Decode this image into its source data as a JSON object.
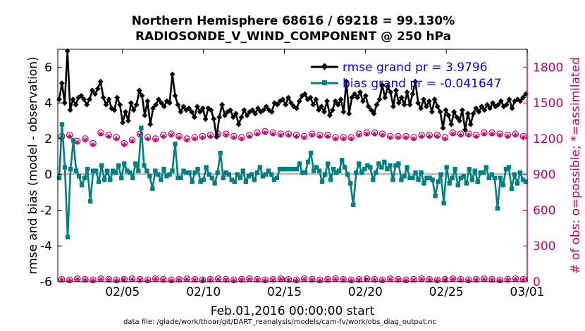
{
  "chart_data": {
    "type": "line",
    "title": "Northern Hemisphere 68616 / 69218 = 99.130%",
    "subtitle": "RADIOSONDE_V_WIND_COMPONENT @ 250 hPa",
    "xlabel": "Feb.01,2016 00:00:00 start",
    "ylabel": "rmse and bias (model - observation)",
    "y2label": "# of obs: o=possible; *=assimilated",
    "footnote": "data file: /glade/work/thoar/git/DART_reanalysis/models/cam-fv/work/obs_diag_output.nc",
    "x_range_days": [
      1,
      30
    ],
    "ylim": [
      -6,
      7
    ],
    "y2lim": [
      0,
      1950
    ],
    "x_ticks": [
      {
        "day": 5,
        "label": "02/05"
      },
      {
        "day": 10,
        "label": "02/10"
      },
      {
        "day": 15,
        "label": "02/15"
      },
      {
        "day": 20,
        "label": "02/20"
      },
      {
        "day": 25,
        "label": "02/25"
      },
      {
        "day": 30,
        "label": "03/01"
      }
    ],
    "y_ticks": [
      -6,
      -4,
      -2,
      0,
      2,
      4,
      6
    ],
    "y2_ticks": [
      0,
      300,
      600,
      900,
      1200,
      1500,
      1800
    ],
    "colors": {
      "rmse": "#000000",
      "bias": "#008080",
      "obs": "#cc0066",
      "zero_line": "#bbbbbb",
      "right_axis": "#cc0066",
      "legend_text": "#0000ff"
    },
    "legend": [
      {
        "label": "rmse grand pr = 3.9796",
        "series": "rmse"
      },
      {
        "label": "bias grand pr = -0.041647",
        "series": "bias"
      }
    ],
    "rmse_values": [
      4.2,
      5.1,
      4.0,
      6.9,
      3.6,
      4.2,
      3.9,
      4.3,
      4.4,
      4.2,
      3.9,
      4.2,
      4.7,
      4.5,
      4.8,
      5.2,
      4.3,
      3.9,
      4.2,
      3.7,
      3.6,
      4.3,
      3.9,
      2.9,
      3.5,
      3.0,
      4.0,
      3.6,
      3.9,
      4.7,
      4.4,
      3.3,
      4.1,
      2.8,
      3.7,
      3.9,
      4.2,
      4.0,
      3.8,
      4.1,
      4.0,
      5.6,
      4.4,
      3.9,
      3.5,
      3.8,
      3.6,
      3.7,
      3.5,
      3.2,
      3.8,
      3.5,
      3.7,
      3.1,
      3.7,
      3.6,
      3.1,
      2.1,
      3.2,
      3.9,
      3.3,
      3.5,
      3.6,
      3.2,
      3.4,
      2.8,
      3.2,
      3.6,
      3.3,
      3.5,
      3.6,
      3.4,
      3.7,
      3.5,
      3.6,
      3.8,
      3.6,
      3.5,
      4.0,
      3.9,
      4.1,
      4.2,
      3.9,
      4.3,
      4.0,
      3.8,
      3.7,
      4.1,
      4.4,
      4.5,
      4.2,
      4.3,
      3.9,
      4.2,
      3.6,
      3.8,
      3.5,
      4.1,
      3.3,
      3.6,
      4.1,
      3.9,
      4.2,
      3.5,
      5.2,
      3.4,
      4.3,
      4.5,
      4.3,
      4.6,
      4.1,
      4.4,
      3.8,
      3.6,
      3.4,
      3.9,
      4.2,
      5.0,
      4.3,
      4.9,
      4.6,
      3.8,
      4.7,
      4.0,
      4.3,
      3.9,
      4.6,
      3.9,
      4.5,
      5.2,
      4.0,
      3.7,
      4.2,
      3.8,
      4.1,
      3.5,
      4.2,
      3.8,
      3.5,
      2.6,
      3.6,
      3.3,
      2.8,
      3.5,
      3.2,
      3.0,
      3.6,
      2.5,
      3.4,
      2.8,
      3.4,
      3.7,
      3.5,
      3.8,
      3.6,
      3.9,
      3.7,
      4.0,
      3.8,
      3.9,
      4.1,
      3.8,
      3.9,
      4.2,
      3.7,
      4.1,
      4.2,
      4.1,
      4.3,
      4.5
    ],
    "bias_values": [
      -0.2,
      2.8,
      0.4,
      -3.5,
      0.3,
      1.9,
      0.2,
      -0.1,
      -0.6,
      -0.2,
      0.3,
      -1.5,
      0.2,
      0.2,
      -0.4,
      0.5,
      -0.3,
      0.2,
      -0.3,
      0.2,
      0.1,
      0.5,
      -0.2,
      0.6,
      0.2,
      0.1,
      -0.2,
      0.6,
      0.2,
      2.6,
      0.5,
      0.2,
      -0.1,
      -0.8,
      0.2,
      0.0,
      -0.3,
      0.3,
      -0.1,
      0.0,
      0.2,
      1.7,
      -0.2,
      -0.2,
      0.2,
      0.1,
      0.1,
      -0.4,
      0.1,
      0.3,
      -0.4,
      -0.3,
      0.4,
      0.0,
      -0.2,
      -0.5,
      0.1,
      1.2,
      -0.2,
      0.1,
      0.0,
      -0.3,
      -0.4,
      0.0,
      -0.2,
      0.2,
      -0.4,
      -0.1,
      0.0,
      -0.3,
      0.1,
      0.4,
      -0.1,
      0.0,
      0.2,
      0.0,
      -0.3,
      -0.2,
      0.3,
      0.3,
      0.3,
      0.3,
      0.3,
      0.3,
      0.3,
      0.6,
      0.1,
      0.1,
      0.7,
      1.2,
      0.2,
      0.4,
      0.2,
      -0.4,
      0.0,
      0.6,
      -0.3,
      0.3,
      0.1,
      0.2,
      0.8,
      0.4,
      0.0,
      -0.5,
      -1.7,
      0.1,
      0.6,
      0.1,
      0.3,
      0.5,
      0.4,
      -0.3,
      0.1,
      0.6,
      0.4,
      0.7,
      0.3,
      0.5,
      -0.3,
      0.5,
      0.6,
      -0.3,
      -0.1,
      0.4,
      -0.2,
      -0.2,
      0.1,
      -0.3,
      0.1,
      -0.5,
      -0.2,
      -0.2,
      -0.3,
      -1.2,
      -0.4,
      0.0,
      -1.6,
      0.4,
      -0.5,
      -0.2,
      0.3,
      -0.6,
      -0.2,
      -0.1,
      -0.5,
      0.3,
      -0.3,
      0.2,
      -0.4,
      0.1,
      0.1,
      0.4,
      -0.2,
      0.0,
      -0.2,
      -1.9,
      -0.2,
      -0.6,
      0.3,
      0.4,
      -0.8,
      0.0,
      -0.5,
      0.1,
      -0.3,
      -0.4
    ],
    "obs_possible_upper": [
      1220,
      1230,
      1180,
      1200,
      1160,
      1250,
      1230,
      1210,
      1160,
      1190,
      1240,
      1210,
      1200,
      1230,
      1240,
      1220,
      1200,
      1210,
      1220,
      1230,
      1240,
      1240,
      1220,
      1210,
      1230,
      1250,
      1260,
      1250,
      1240,
      1240,
      1230,
      1220,
      1240,
      1230,
      1230,
      1210,
      1210,
      1210,
      1240,
      1250,
      1250,
      1240,
      1220,
      1220,
      1220,
      1210,
      1230,
      1230,
      1230,
      1210,
      1250,
      1240,
      1240,
      1230,
      1250,
      1250,
      1240,
      1230,
      1240,
      1220
    ],
    "obs_assimilated_upper": [
      1210,
      1220,
      1170,
      1190,
      1150,
      1240,
      1220,
      1200,
      1150,
      1180,
      1230,
      1200,
      1190,
      1220,
      1230,
      1210,
      1190,
      1200,
      1210,
      1220,
      1230,
      1230,
      1210,
      1200,
      1220,
      1240,
      1250,
      1240,
      1230,
      1230,
      1220,
      1210,
      1230,
      1220,
      1220,
      1200,
      1200,
      1200,
      1230,
      1240,
      1240,
      1230,
      1210,
      1210,
      1210,
      1200,
      1220,
      1220,
      1220,
      1200,
      1240,
      1230,
      1230,
      1220,
      1240,
      1240,
      1230,
      1220,
      1230,
      1210
    ],
    "obs_possible_lower": [
      20,
      15,
      25,
      20,
      15,
      25,
      20,
      15,
      20,
      25,
      20,
      15,
      25,
      20,
      15,
      20,
      25,
      20,
      15,
      20,
      25,
      20,
      15,
      20,
      25,
      20,
      15,
      20,
      25,
      20,
      15,
      25,
      20,
      15,
      20,
      25,
      20,
      15,
      20,
      25,
      20,
      15,
      25,
      20,
      15,
      20,
      25,
      20,
      15,
      20,
      25,
      20,
      15,
      20,
      25,
      20,
      15,
      20,
      25,
      20
    ],
    "obs_assimilated_lower": [
      15,
      10,
      20,
      15,
      10,
      20,
      15,
      10,
      15,
      20,
      15,
      10,
      20,
      15,
      10,
      15,
      20,
      15,
      10,
      15,
      20,
      15,
      10,
      15,
      20,
      15,
      10,
      15,
      20,
      15,
      10,
      20,
      15,
      10,
      15,
      20,
      15,
      10,
      15,
      20,
      15,
      10,
      20,
      15,
      10,
      15,
      20,
      15,
      10,
      15,
      20,
      15,
      10,
      15,
      20,
      15,
      10,
      15,
      20,
      15
    ]
  }
}
